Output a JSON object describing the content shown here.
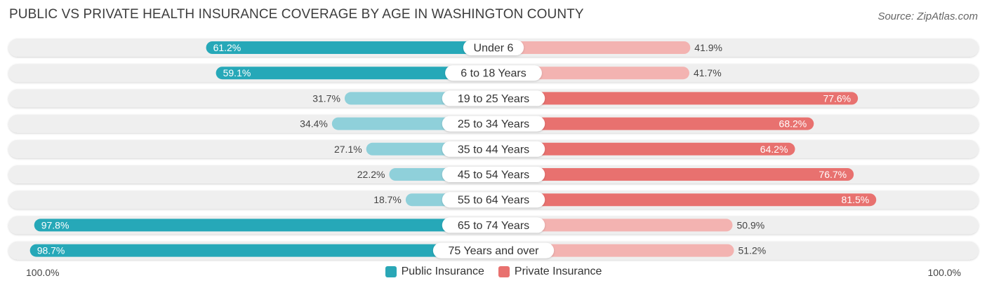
{
  "title": "PUBLIC VS PRIVATE HEALTH INSURANCE COVERAGE BY AGE IN WASHINGTON COUNTY",
  "source": "Source: ZipAtlas.com",
  "colors": {
    "public_dark": "#26a8b8",
    "public_light": "#8fd0da",
    "private_dark": "#e8716f",
    "private_light": "#f3b3b1",
    "track": "#efefef"
  },
  "axis": {
    "left_label": "100.0%",
    "right_label": "100.0%"
  },
  "legend": [
    {
      "label": "Public Insurance",
      "color": "#2aa7b6"
    },
    {
      "label": "Private Insurance",
      "color": "#e8716f"
    }
  ],
  "chart_data": {
    "type": "bar",
    "orientation": "diverging-horizontal",
    "title": "PUBLIC VS PRIVATE HEALTH INSURANCE COVERAGE BY AGE IN WASHINGTON COUNTY",
    "categories": [
      "Under 6",
      "6 to 18 Years",
      "19 to 25 Years",
      "25 to 34 Years",
      "35 to 44 Years",
      "45 to 54 Years",
      "55 to 64 Years",
      "65 to 74 Years",
      "75 Years and over"
    ],
    "series": [
      {
        "name": "Public Insurance",
        "side": "left",
        "values": [
          61.2,
          59.1,
          31.7,
          34.4,
          27.1,
          22.2,
          18.7,
          97.8,
          98.7
        ],
        "labels": [
          "61.2%",
          "59.1%",
          "31.7%",
          "34.4%",
          "27.1%",
          "22.2%",
          "18.7%",
          "97.8%",
          "98.7%"
        ]
      },
      {
        "name": "Private Insurance",
        "side": "right",
        "values": [
          41.9,
          41.7,
          77.6,
          68.2,
          64.2,
          76.7,
          81.5,
          50.9,
          51.2
        ],
        "labels": [
          "41.9%",
          "41.7%",
          "77.6%",
          "68.2%",
          "64.2%",
          "76.7%",
          "81.5%",
          "50.9%",
          "51.2%"
        ]
      }
    ],
    "xlim": [
      0,
      100
    ],
    "xlabel_left": "100.0%",
    "xlabel_right": "100.0%",
    "legend_position": "bottom-center"
  }
}
